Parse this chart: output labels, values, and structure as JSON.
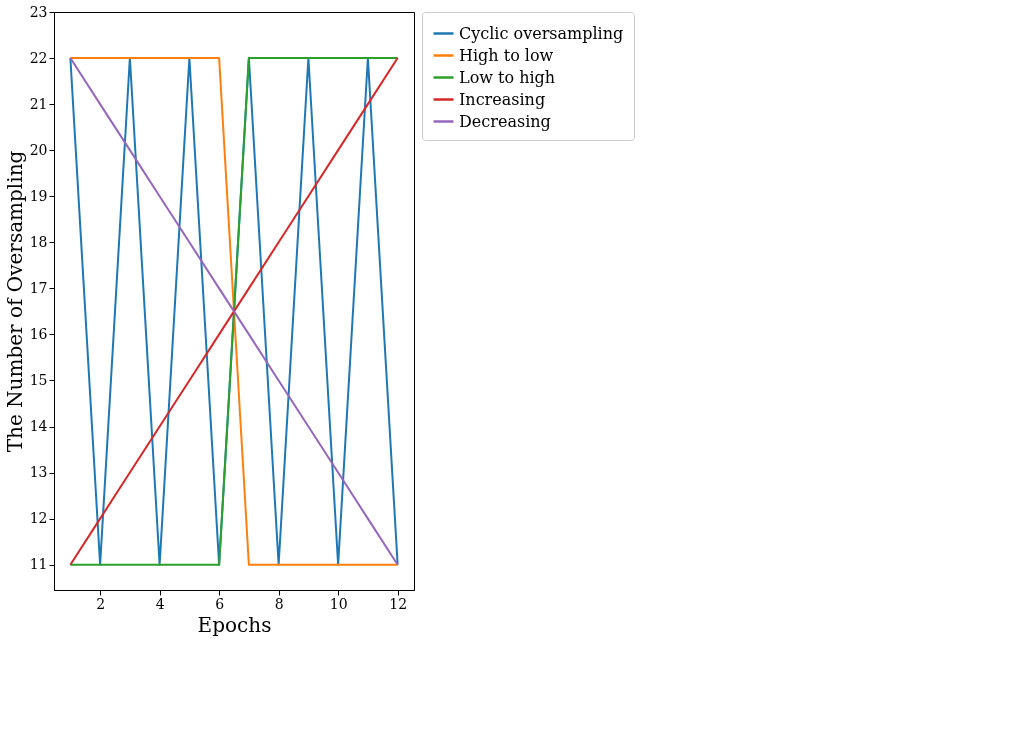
{
  "chart_data": {
    "type": "line",
    "xlabel": "Epochs",
    "ylabel": "The Number of Oversampling",
    "x": [
      1,
      2,
      3,
      4,
      5,
      6,
      7,
      8,
      9,
      10,
      11,
      12
    ],
    "series": [
      {
        "name": "Cyclic oversampling",
        "color": "#1f77b4",
        "values": [
          22,
          11,
          22,
          11,
          22,
          11,
          22,
          11,
          22,
          11,
          22,
          11
        ]
      },
      {
        "name": "High to low",
        "color": "#ff7f0e",
        "values": [
          22,
          22,
          22,
          22,
          22,
          22,
          11,
          11,
          11,
          11,
          11,
          11
        ]
      },
      {
        "name": "Low to high",
        "color": "#2ca02c",
        "values": [
          11,
          11,
          11,
          11,
          11,
          11,
          22,
          22,
          22,
          22,
          22,
          22
        ]
      },
      {
        "name": "Increasing",
        "color": "#d62728",
        "values": [
          11,
          12,
          13,
          14,
          15,
          16,
          17,
          18,
          19,
          20,
          21,
          22
        ]
      },
      {
        "name": "Decreasing",
        "color": "#9467bd",
        "values": [
          22,
          21,
          20,
          19,
          18,
          17,
          16,
          15,
          14,
          13,
          12,
          11
        ]
      }
    ],
    "xlim": [
      0.45,
      12.55
    ],
    "ylim": [
      10.45,
      23
    ],
    "xticks": [
      2,
      4,
      6,
      8,
      10,
      12
    ],
    "yticks": [
      11,
      12,
      13,
      14,
      15,
      16,
      17,
      18,
      19,
      20,
      21,
      22,
      23
    ],
    "grid": false,
    "legend": "right",
    "marker": "none",
    "line_style": "solid"
  }
}
